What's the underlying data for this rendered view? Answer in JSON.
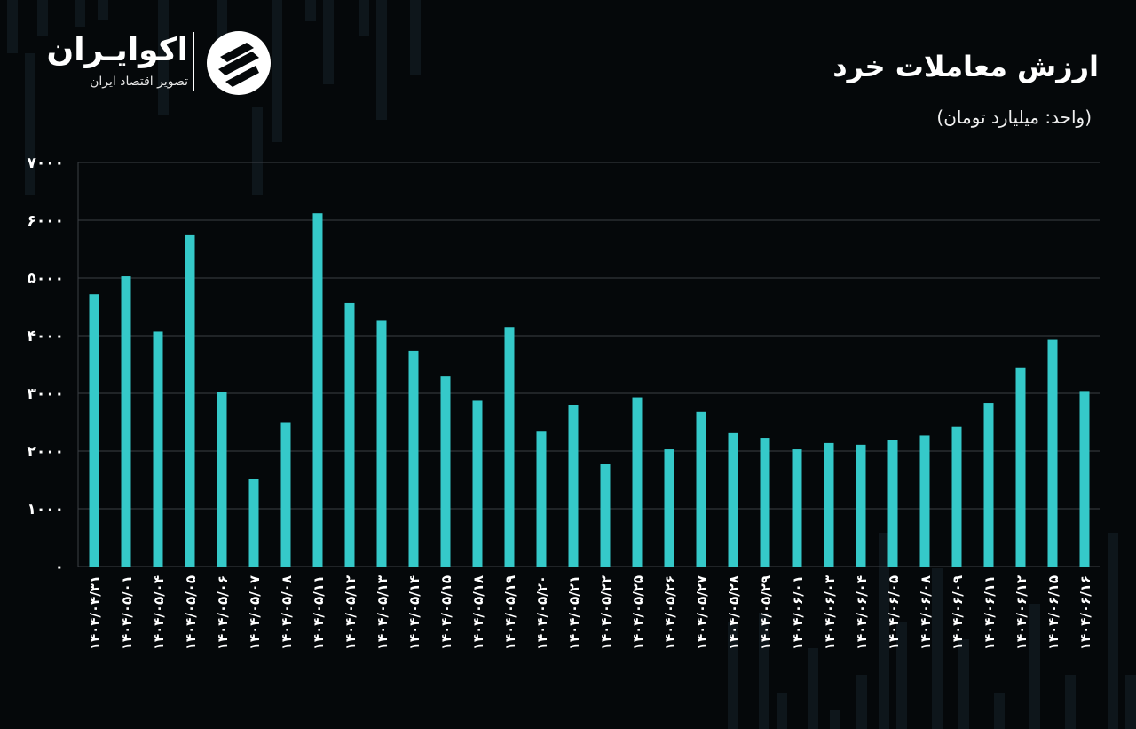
{
  "brand": {
    "name": "اکوایـران",
    "tagline": "تصویر اقتصاد ایران"
  },
  "colors": {
    "background": "#05080a",
    "bar": "#35c9c9",
    "grid": "#3a3f44",
    "text": "#ffffff"
  },
  "chart_data": {
    "type": "bar",
    "title": "ارزش معاملات خرد",
    "subtitle": "(واحد: میلیارد تومان)",
    "ylim": [
      0,
      7000
    ],
    "yticks": [
      "۰",
      "۱۰۰۰",
      "۲۰۰۰",
      "۳۰۰۰",
      "۴۰۰۰",
      "۵۰۰۰",
      "۶۰۰۰",
      "۷۰۰۰"
    ],
    "grid": true,
    "categories": [
      "۱۴۰۴/۰۴/۳۱",
      "۱۴۰۴/۰۵/۰۱",
      "۱۴۰۴/۰۵/۰۴",
      "۱۴۰۴/۰۵/۰۵",
      "۱۴۰۴/۰۵/۰۶",
      "۱۴۰۴/۰۵/۰۷",
      "۱۴۰۴/۰۵/۰۸",
      "۱۴۰۴/۰۵/۱۱",
      "۱۴۰۴/۰۵/۱۲",
      "۱۴۰۴/۰۵/۱۳",
      "۱۴۰۴/۰۵/۱۴",
      "۱۴۰۴/۰۵/۱۵",
      "۱۴۰۴/۰۵/۱۸",
      "۱۴۰۴/۰۵/۱۹",
      "۱۴۰۴/۰۵/۲۰",
      "۱۴۰۴/۰۵/۲۱",
      "۱۴۰۴/۰۵/۲۲",
      "۱۴۰۴/۰۵/۲۵",
      "۱۴۰۴/۰۵/۲۶",
      "۱۴۰۴/۰۵/۲۷",
      "۱۴۰۴/۰۵/۲۸",
      "۱۴۰۴/۰۵/۲۹",
      "۱۴۰۴/۰۶/۰۱",
      "۱۴۰۴/۰۶/۰۳",
      "۱۴۰۴/۰۶/۰۴",
      "۱۴۰۴/۰۶/۰۵",
      "۱۴۰۴/۰۶/۰۸",
      "۱۴۰۴/۰۶/۰۹",
      "۱۴۰۴/۰۶/۱۱",
      "۱۴۰۴/۰۶/۱۲",
      "۱۴۰۴/۰۶/۱۵",
      "۱۴۰۴/۰۶/۱۶"
    ],
    "values": [
      4720,
      5030,
      4070,
      5740,
      3030,
      1520,
      2500,
      6120,
      4570,
      4270,
      3740,
      3290,
      2870,
      4150,
      2350,
      2800,
      1770,
      2930,
      2030,
      2680,
      2310,
      2230,
      2030,
      2140,
      2110,
      2190,
      2270,
      2420,
      2830,
      3450,
      3930,
      3040
    ]
  }
}
